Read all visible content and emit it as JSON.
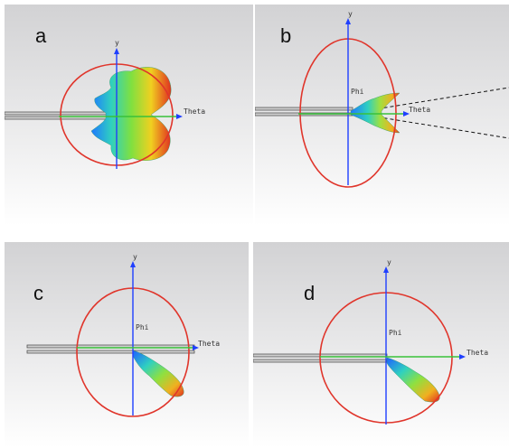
{
  "panels": [
    {
      "label": "a",
      "axes": {
        "y": "y",
        "theta": "Theta"
      }
    },
    {
      "label": "b",
      "axes": {
        "y": "y",
        "phi": "Phi",
        "theta": "Theta"
      }
    },
    {
      "label": "c",
      "axes": {
        "y": "y",
        "phi": "Phi",
        "theta": "Theta"
      }
    },
    {
      "label": "d",
      "axes": {
        "y": "y",
        "phi": "Phi",
        "theta": "Theta"
      }
    }
  ],
  "colors": {
    "circle": "#e0352b",
    "y_axis": "#1f3fff",
    "theta_axis": "#39c13a",
    "probe": "#555555",
    "background_top": "#d4d4d6",
    "background_bottom": "#ffffff"
  }
}
